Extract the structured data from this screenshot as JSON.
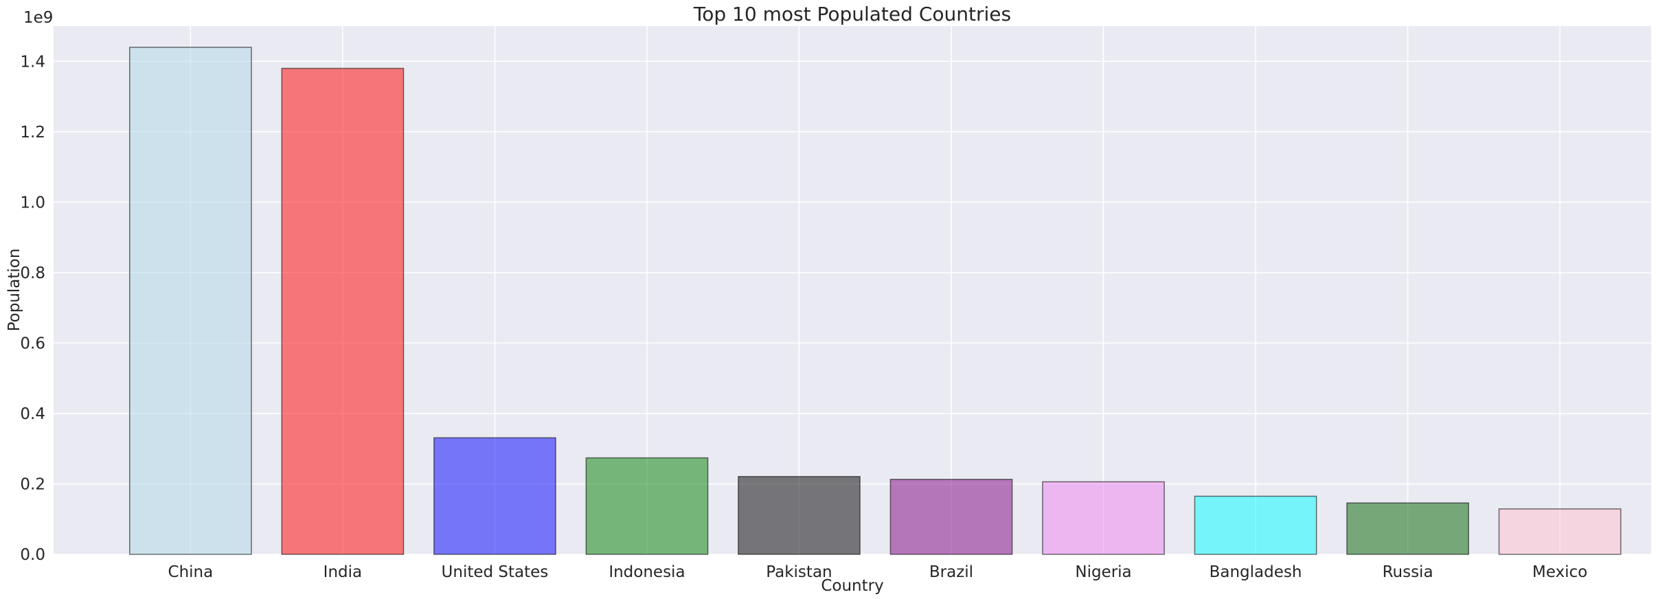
{
  "chart_data": {
    "type": "bar",
    "title": "Top 10 most Populated Countries",
    "xlabel": "Country",
    "ylabel": "Population",
    "y_offset_label": "1e9",
    "y_scale_multiplier": 1000000000,
    "ylim": [
      0,
      1.5
    ],
    "yticks": [
      "0.0",
      "0.2",
      "0.4",
      "0.6",
      "0.8",
      "1.0",
      "1.2",
      "1.4"
    ],
    "grid": true,
    "categories": [
      "China",
      "India",
      "United States",
      "Indonesia",
      "Pakistan",
      "Brazil",
      "Nigeria",
      "Bangladesh",
      "Russia",
      "Mexico"
    ],
    "values": [
      1.44,
      1.38,
      0.331,
      0.274,
      0.221,
      0.213,
      0.206,
      0.165,
      0.146,
      0.129
    ],
    "colors": [
      "#add8e6",
      "#ff0000",
      "#0000ff",
      "#008000",
      "#000000",
      "#800080",
      "#ee82ee",
      "#00ffff",
      "#006400",
      "#ffc0cb"
    ],
    "bar_opacity": 0.5,
    "plot_background": "#eaeaf2",
    "grid_color": "#ffffff",
    "edge_color": "#000000"
  }
}
